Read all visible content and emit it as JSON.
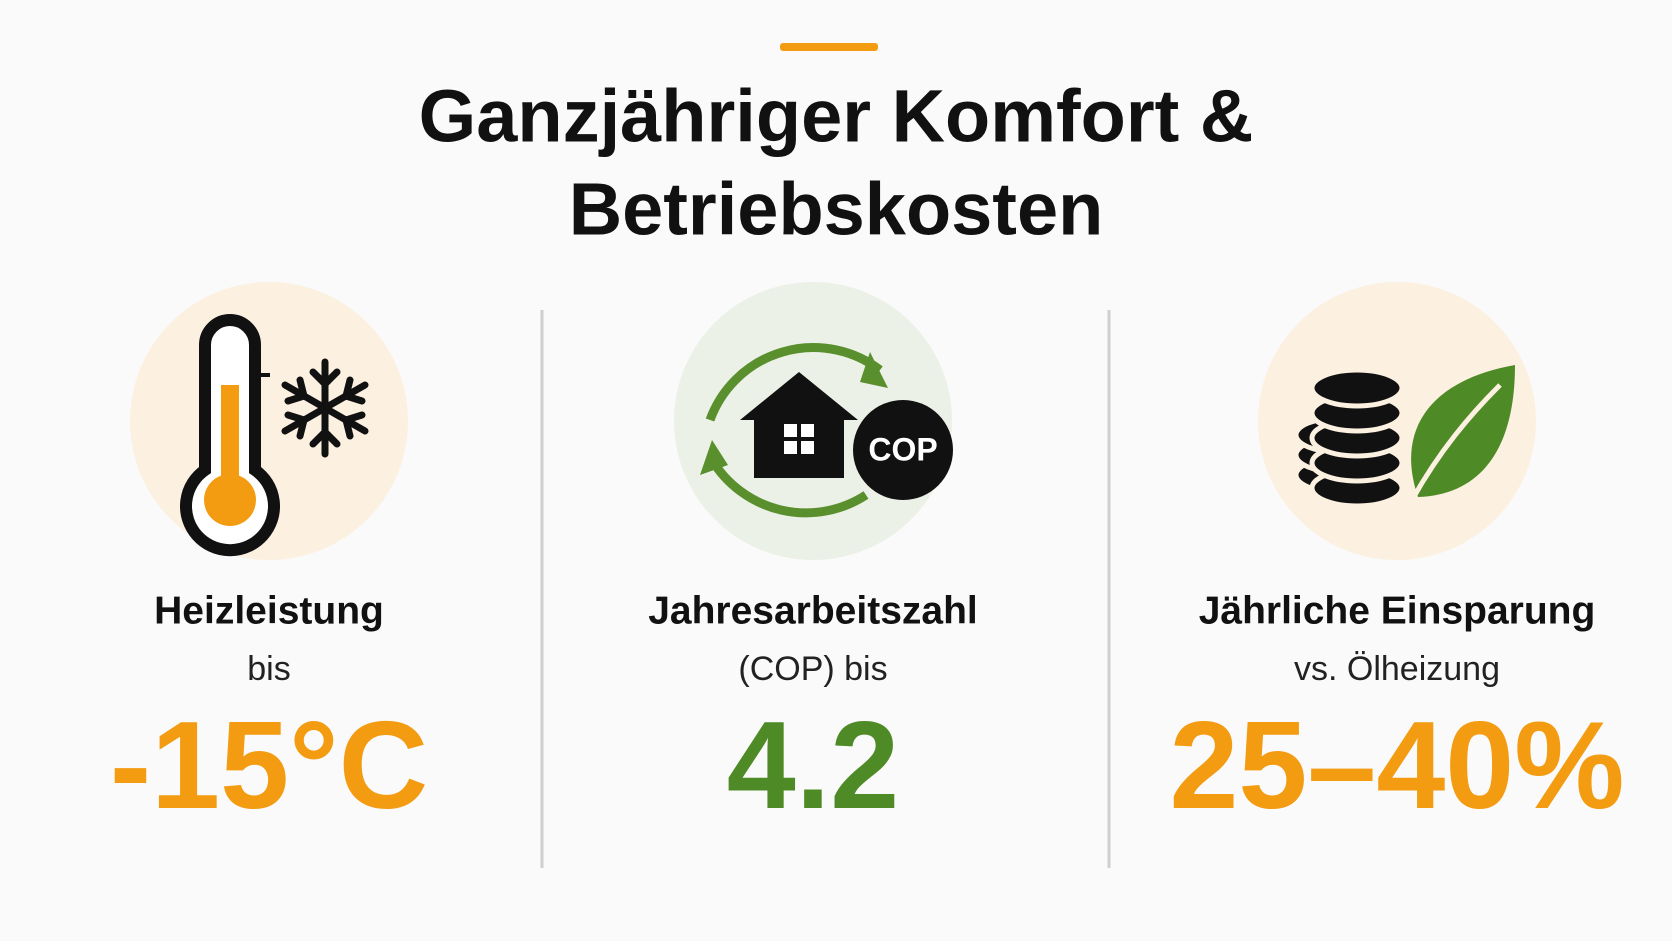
{
  "header": {
    "title_lines": [
      "Ganzjähriger Komfort &",
      "Betriebskosten"
    ]
  },
  "stats": [
    {
      "label": "Heizleistung",
      "sublabel": "bis",
      "value": "-15°C",
      "color": "#f39c12"
    },
    {
      "label": "Jahresarbeitszahl",
      "sublabel": "(COP) bis",
      "value": "4.2",
      "color": "#4e8a26",
      "icon_text": "COP"
    },
    {
      "label": "Jährliche Einsparung",
      "sublabel": "vs. Ölheizung",
      "value": "25–40%",
      "color": "#f39c12"
    }
  ]
}
